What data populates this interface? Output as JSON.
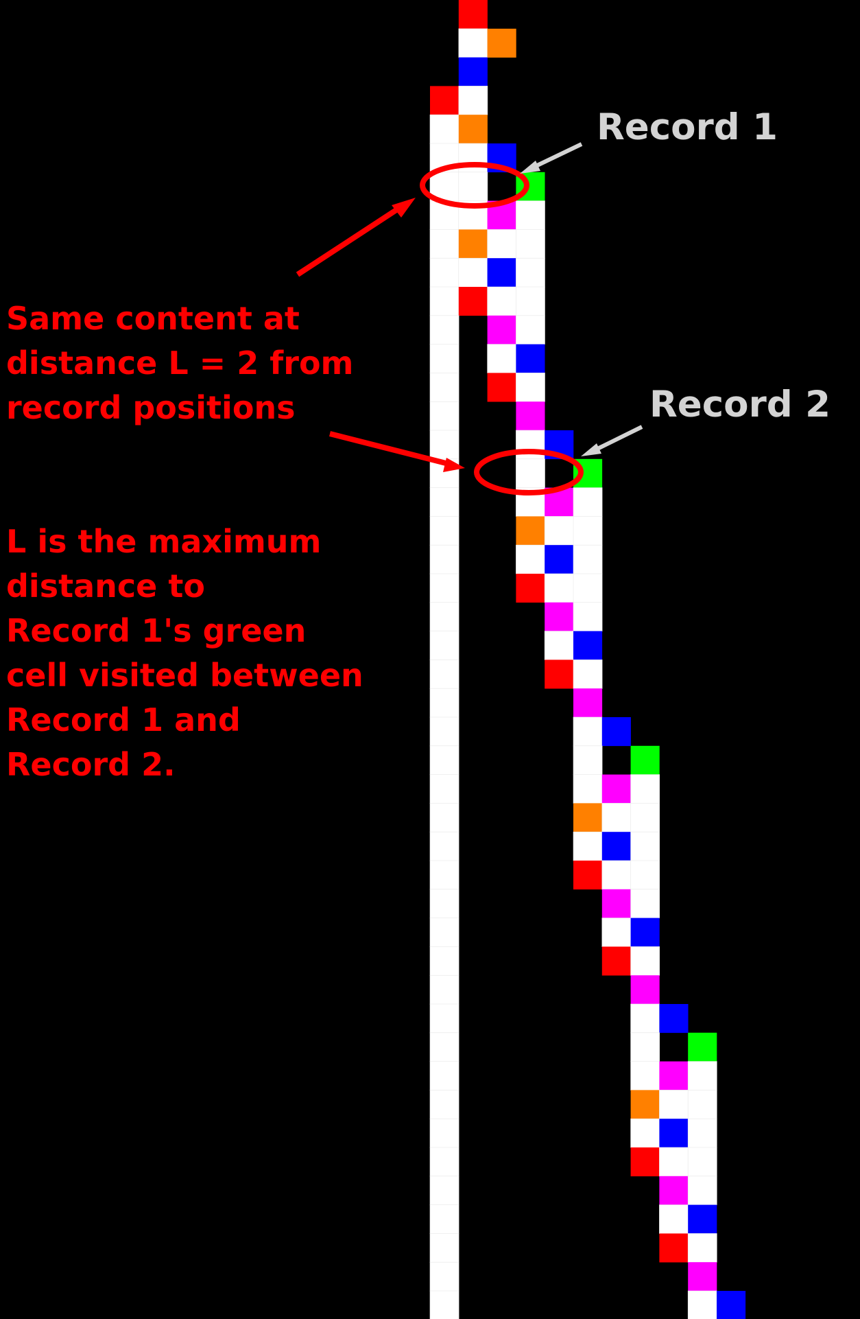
{
  "labels": {
    "record1": "Record 1",
    "record2": "Record 2"
  },
  "annotation_same_content": [
    "Same content at",
    "distance L = 2 from",
    "record positions"
  ],
  "annotation_definition": [
    "L is the maximum",
    "distance to",
    "Record 1's green",
    "cell visited between",
    "Record 1 and",
    "Record 2."
  ],
  "colors": {
    "background": "#000000",
    "white": "#ffffff",
    "red": "#ff0000",
    "orange": "#ff8000",
    "blue": "#0000ff",
    "green": "#00ff00",
    "magenta": "#ff00ff",
    "annotation": "#ff0000",
    "label": "#d3d3d3"
  },
  "grid": {
    "col_start": 14,
    "rows": [
      "..R...",
      "..WO..",
      "..B...",
      ".RW...",
      ".WO...",
      ".WWB..",
      ".WW.G.",
      ".WWMW.",
      ".WOWW.",
      ".WWBW.",
      ".WRWW.",
      ".W.MW.",
      ".W.WB.",
      ".W.RW.",
      ".W..M.",
      ".W..WB",
      ".W..W.G",
      ".W..WMW",
      ".W..OWW",
      ".W..WBW",
      ".W..RWW",
      ".W...MW",
      ".W...WB",
      ".W...RW",
      ".W....M",
      ".W....WB",
      ".W....W.G",
      ".W....WMW",
      ".W....OWW",
      ".W....WBW",
      ".W....RWW",
      ".W.....MW",
      ".W.....WB",
      ".W.....RW",
      ".W......M",
      ".W......WB",
      ".W......W.G",
      ".W......WMW",
      ".W......OWW",
      ".W......WBW",
      ".W......RWW",
      ".W.......MW",
      ".W.......WB",
      ".W.......RW",
      ".W........M",
      ".W........WB"
    ]
  }
}
